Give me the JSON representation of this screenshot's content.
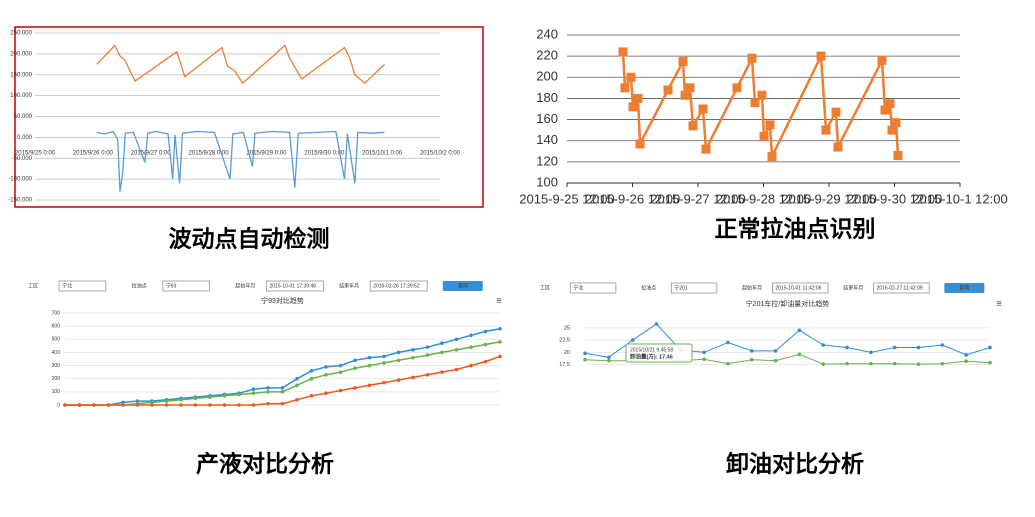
{
  "chart_data": [
    {
      "type": "line",
      "caption": "波动点自动检测",
      "xlim": [
        0,
        7
      ],
      "xticks": [
        {
          "value": 0,
          "label": "2015/9/25 0:00"
        },
        {
          "value": 1,
          "label": "2015/9/26 0:00"
        },
        {
          "value": 2,
          "label": "2015/9/27 0:00"
        },
        {
          "value": 3,
          "label": "2015/9/28 0:00"
        },
        {
          "value": 4,
          "label": "2015/9/29 0:00"
        },
        {
          "value": 5,
          "label": "2015/9/30 0:00"
        },
        {
          "value": 6,
          "label": "2015/10/1 0:00"
        },
        {
          "value": 7,
          "label": "2015/10/2 0:00"
        }
      ],
      "ylim": [
        -150,
        250
      ],
      "yticks": [
        {
          "value": 250,
          "label": "250.000"
        },
        {
          "value": 200,
          "label": "200.000"
        },
        {
          "value": 150,
          "label": "150.000"
        },
        {
          "value": 100,
          "label": "100.000"
        },
        {
          "value": 50,
          "label": "50.000"
        },
        {
          "value": 0,
          "label": "0.000"
        },
        {
          "value": -50,
          "label": "-50.000"
        },
        {
          "value": -100,
          "label": "-100.000"
        },
        {
          "value": -150,
          "label": "-150.000"
        }
      ],
      "grid": true,
      "series": [
        {
          "color": "#5b9bd5",
          "x": [
            1.07,
            1.2,
            1.35,
            1.43,
            1.47,
            1.52,
            1.56,
            1.7,
            1.9,
            1.95,
            2.1,
            2.3,
            2.38,
            2.42,
            2.5,
            2.55,
            2.8,
            3.1,
            3.37,
            3.42,
            3.6,
            3.76,
            3.8,
            4.1,
            4.4,
            4.49,
            4.55,
            4.9,
            5.2,
            5.35,
            5.4,
            5.53,
            5.58,
            5.8,
            6.04
          ],
          "values": [
            12,
            8,
            14,
            -5,
            -130,
            -80,
            10,
            12,
            -60,
            10,
            14,
            8,
            -100,
            6,
            -110,
            10,
            14,
            12,
            -100,
            8,
            12,
            -70,
            10,
            14,
            12,
            -120,
            10,
            12,
            14,
            -100,
            8,
            -110,
            12,
            10,
            12
          ]
        },
        {
          "color": "#ed7d31",
          "x": [
            1.07,
            1.38,
            1.47,
            1.55,
            1.64,
            1.73,
            2.45,
            2.5,
            2.59,
            3.23,
            3.33,
            3.45,
            3.59,
            4.32,
            4.4,
            4.61,
            5.35,
            5.44,
            5.53,
            5.7,
            6.04
          ],
          "values": [
            175,
            220,
            195,
            185,
            160,
            135,
            205,
            185,
            145,
            215,
            170,
            160,
            130,
            220,
            190,
            140,
            215,
            190,
            150,
            130,
            175
          ]
        }
      ]
    },
    {
      "type": "line",
      "caption": "正常拉油点识别",
      "xlim": [
        0,
        6
      ],
      "xticks": [
        {
          "value": 0,
          "label": "2015-9-25 12:00"
        },
        {
          "value": 1,
          "label": "2015-9-26 12:00"
        },
        {
          "value": 2,
          "label": "2015-9-27 12:00"
        },
        {
          "value": 3,
          "label": "2015-9-28 12:00"
        },
        {
          "value": 4,
          "label": "2015-9-29 12:00"
        },
        {
          "value": 5,
          "label": "2015-9-30 12:00"
        },
        {
          "value": 6,
          "label": "2015-10-1 12:00"
        }
      ],
      "ylim": [
        100,
        240
      ],
      "yticks": [
        100,
        120,
        140,
        160,
        180,
        200,
        220,
        240
      ],
      "grid": true,
      "series": [
        {
          "color": "#ed7d31",
          "x": [
            0.855,
            0.885,
            0.977,
            1.008,
            1.084,
            1.115,
            1.542,
            1.771,
            1.802,
            1.878,
            1.924,
            2.076,
            2.122,
            2.595,
            2.824,
            2.87,
            2.977,
            3.008,
            3.099,
            3.13,
            3.878,
            3.954,
            4.107,
            4.137,
            4.809,
            4.855,
            4.931,
            4.962,
            5.023,
            5.053
          ],
          "values": [
            224,
            190,
            200,
            172,
            180,
            137,
            188,
            215,
            183,
            190,
            154,
            170,
            132,
            190,
            218,
            176,
            183,
            144,
            155,
            125,
            220,
            150,
            167,
            134,
            216,
            169,
            175,
            150,
            157,
            126
          ]
        }
      ]
    },
    {
      "type": "line",
      "caption": "产液对比分析",
      "title": "宁93对比趋势",
      "form": {
        "items": [
          {
            "label": "工区",
            "value": "宁北"
          },
          {
            "label": "拉油点",
            "value": "宁93"
          },
          {
            "label": "起始年月",
            "value": "2015-10-01 17:39:48"
          },
          {
            "label": "结束年月",
            "value": "2016-02-26 17:39:52"
          }
        ],
        "button": "查询"
      },
      "ylim": [
        0,
        700
      ],
      "yticks": [
        0,
        100,
        200,
        300,
        400,
        500,
        600,
        700
      ],
      "grid": true,
      "series": [
        {
          "color": "#2e8fd6",
          "values": [
            0,
            0,
            0,
            0,
            20,
            30,
            30,
            40,
            50,
            60,
            70,
            80,
            90,
            120,
            130,
            130,
            200,
            260,
            290,
            300,
            340,
            360,
            370,
            400,
            420,
            440,
            470,
            500,
            530,
            560,
            580
          ]
        },
        {
          "color": "#6ab04c",
          "values": [
            0,
            0,
            0,
            0,
            0,
            10,
            20,
            30,
            40,
            50,
            60,
            70,
            80,
            90,
            100,
            100,
            150,
            200,
            230,
            250,
            280,
            300,
            320,
            340,
            360,
            380,
            400,
            420,
            440,
            460,
            480
          ]
        },
        {
          "color": "#f0581c",
          "values": [
            0,
            0,
            0,
            0,
            0,
            0,
            0,
            0,
            0,
            0,
            0,
            0,
            0,
            0,
            10,
            10,
            40,
            70,
            90,
            110,
            130,
            150,
            170,
            190,
            210,
            230,
            250,
            270,
            300,
            330,
            370
          ]
        }
      ]
    },
    {
      "type": "line",
      "caption": "卸油对比分析",
      "title": "宁201车拉/卸油量对比趋势",
      "form": {
        "items": [
          {
            "label": "工区",
            "value": "宁北"
          },
          {
            "label": "拉油点",
            "value": "宁201"
          },
          {
            "label": "起始年月",
            "value": "2015-10-01 11:42:06"
          },
          {
            "label": "结束年月",
            "value": "2016-02-27 11:42:09"
          }
        ],
        "button": "查询"
      },
      "tooltip": {
        "title": "2015/10/21 9:45:58",
        "text": "卸油量(方): 17.46"
      },
      "ylim": [
        16,
        27
      ],
      "yticks": [
        17.5,
        20,
        22.5,
        25
      ],
      "grid": true,
      "series": [
        {
          "color": "#2e8fd6",
          "values": [
            19.8,
            19,
            22.5,
            25.8,
            20.5,
            20,
            22,
            20.3,
            20.3,
            24.5,
            21.5,
            21,
            20,
            21,
            21,
            21.5,
            19.5,
            21
          ]
        },
        {
          "color": "#6ab04c",
          "values": [
            18.5,
            18.3,
            18.3,
            18.7,
            18.3,
            18.6,
            17.7,
            18.5,
            18.3,
            19.6,
            17.6,
            17.7,
            17.7,
            17.7,
            17.6,
            17.7,
            18.2,
            17.9
          ]
        }
      ]
    }
  ]
}
